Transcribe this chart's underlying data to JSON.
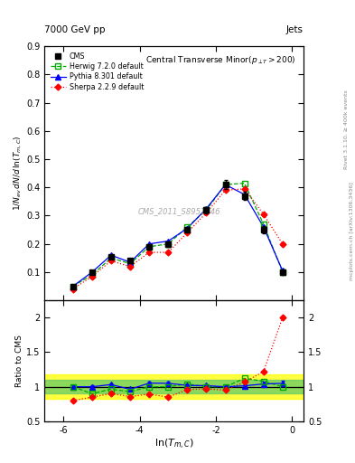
{
  "title_top_left": "7000 GeV pp",
  "title_top_right": "Jets",
  "main_title": "Central Transverse Minor(p_{#surT}  > 200)",
  "xlabel": "ln(T_{m,C})",
  "ylabel_main": "1/N_{ev} dN/d ln(T_{m,C})",
  "ylabel_ratio": "Ratio to CMS",
  "watermark": "CMS_2011_S8957746",
  "right_label_top": "Rivet 3.1.10, ≥ 400k events",
  "right_label_bottom": "mcplots.cern.ch [arXiv:1306.3436]",
  "x_data": [
    -5.75,
    -5.25,
    -4.75,
    -4.25,
    -3.75,
    -3.25,
    -2.75,
    -2.25,
    -1.75,
    -1.25,
    -0.75,
    -0.25
  ],
  "y_cms": [
    0.05,
    0.1,
    0.155,
    0.14,
    0.19,
    0.2,
    0.25,
    0.32,
    0.41,
    0.37,
    0.25,
    0.1
  ],
  "y_cms_err": [
    0.004,
    0.005,
    0.007,
    0.007,
    0.009,
    0.009,
    0.01,
    0.012,
    0.015,
    0.014,
    0.012,
    0.01
  ],
  "y_herwig": [
    0.05,
    0.09,
    0.15,
    0.13,
    0.19,
    0.2,
    0.26,
    0.32,
    0.41,
    0.415,
    0.27,
    0.1
  ],
  "y_pythia": [
    0.05,
    0.1,
    0.16,
    0.135,
    0.2,
    0.21,
    0.255,
    0.325,
    0.41,
    0.375,
    0.26,
    0.105
  ],
  "y_sherpa": [
    0.04,
    0.085,
    0.14,
    0.12,
    0.17,
    0.17,
    0.24,
    0.31,
    0.39,
    0.395,
    0.305,
    0.2
  ],
  "cms_color": "black",
  "herwig_color": "#00aa00",
  "pythia_color": "blue",
  "sherpa_color": "red",
  "band_yellow": [
    0.82,
    1.18
  ],
  "band_green": [
    0.9,
    1.1
  ],
  "xlim": [
    -6.5,
    0.3
  ],
  "ylim_main": [
    0.0,
    0.9
  ],
  "ylim_ratio": [
    0.5,
    2.25
  ],
  "xticks": [
    -6,
    -4,
    -2,
    0
  ],
  "yticks_main": [
    0.1,
    0.2,
    0.3,
    0.4,
    0.5,
    0.6,
    0.7,
    0.8,
    0.9
  ],
  "yticks_ratio": [
    0.5,
    1.0,
    1.5,
    2.0
  ],
  "ratio_herwig": [
    1.0,
    0.9,
    0.965,
    0.929,
    1.0,
    1.0,
    1.04,
    1.0,
    1.0,
    1.122,
    1.08,
    1.0
  ],
  "ratio_pythia": [
    1.0,
    1.0,
    1.032,
    0.964,
    1.053,
    1.05,
    1.02,
    1.016,
    1.0,
    1.014,
    1.04,
    1.05
  ],
  "ratio_sherpa": [
    0.8,
    0.85,
    0.903,
    0.857,
    0.895,
    0.85,
    0.96,
    0.969,
    0.951,
    1.068,
    1.22,
    2.0
  ],
  "ratio_pythia_err": [
    0.02,
    0.02,
    0.02,
    0.02,
    0.02,
    0.02,
    0.02,
    0.02,
    0.02,
    0.025,
    0.03,
    0.04
  ]
}
